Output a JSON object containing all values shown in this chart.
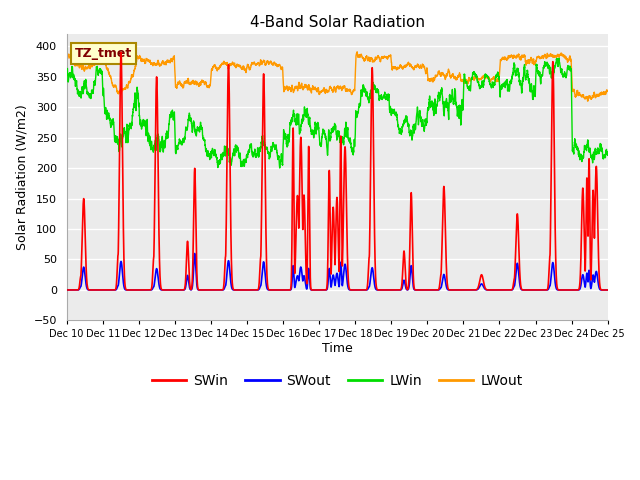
{
  "title": "4-Band Solar Radiation",
  "xlabel": "Time",
  "ylabel": "Solar Radiation (W/m2)",
  "ylim": [
    -50,
    420
  ],
  "xlim": [
    0,
    15
  ],
  "background_color": "#ffffff",
  "plot_bg_color": "#ebebeb",
  "grid_color": "#ffffff",
  "colors": {
    "SWin": "#ff0000",
    "SWout": "#0000ff",
    "LWin": "#00dd00",
    "LWout": "#ff9900"
  },
  "annotation_text": "TZ_tmet",
  "annotation_bg": "#ffffcc",
  "annotation_border": "#cc8800",
  "n_days": 15,
  "day_labels": [
    "Dec 10",
    "Dec 11",
    "Dec 12",
    "Dec 13",
    "Dec 14",
    "Dec 15",
    "Dec 16",
    "Dec 17",
    "Dec 18",
    "Dec 19",
    "Dec 20",
    "Dec 21",
    "Dec 22",
    "Dec 23",
    "Dec 24",
    "Dec 25"
  ],
  "figsize": [
    6.4,
    4.8
  ],
  "dpi": 100
}
